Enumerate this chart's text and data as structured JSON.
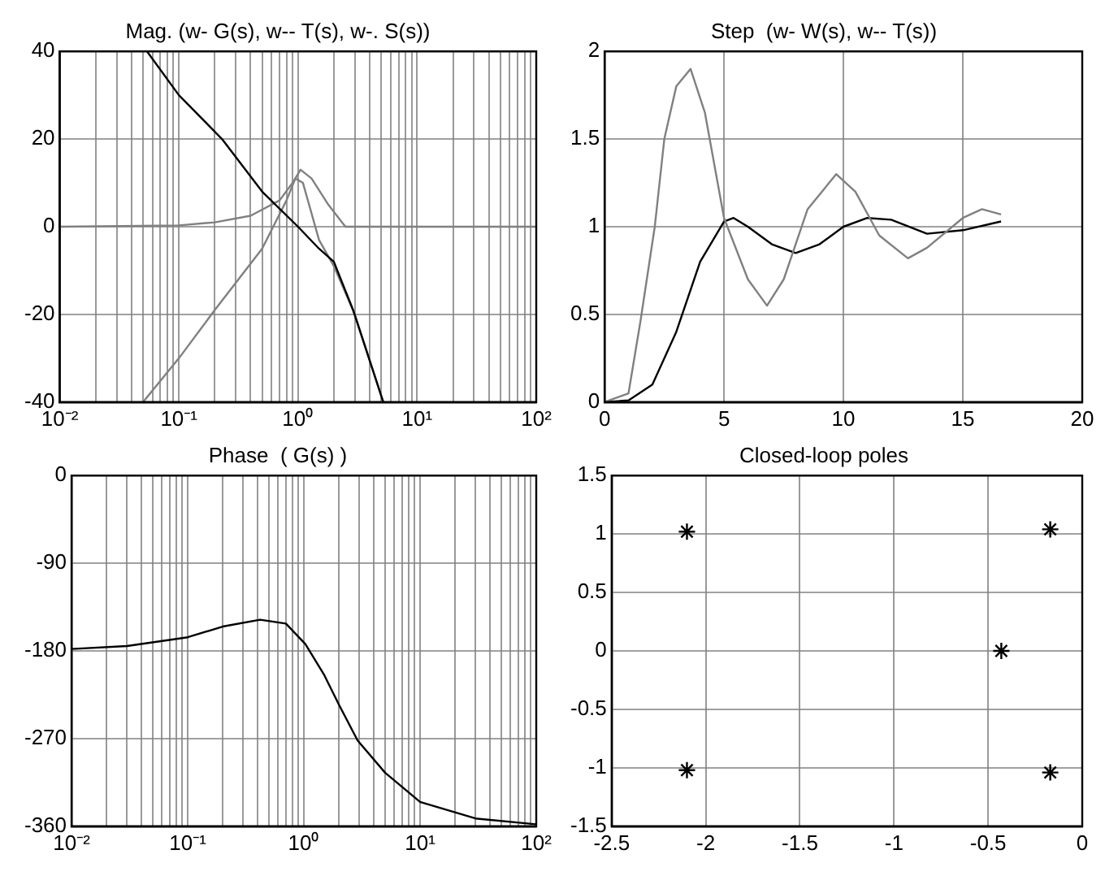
{
  "chart_data": [
    {
      "type": "line",
      "title": "Mag. (w- G(s), w-- T(s), w-. S(s))",
      "log": "x",
      "grid": true,
      "marker": "none",
      "line_style": "solid",
      "xlim": [
        0.01,
        100
      ],
      "ylim": [
        -40,
        40
      ],
      "yticks": [
        -40,
        -20,
        0,
        20,
        40
      ],
      "xticks": [
        {
          "value": 0.01,
          "label": "10⁻²"
        },
        {
          "value": 0.02,
          "label": null
        },
        {
          "value": 0.03,
          "label": null
        },
        {
          "value": 0.04,
          "label": null
        },
        {
          "value": 0.05,
          "label": null
        },
        {
          "value": 0.06,
          "label": null
        },
        {
          "value": 0.07,
          "label": null
        },
        {
          "value": 0.08,
          "label": null
        },
        {
          "value": 0.09,
          "label": null
        },
        {
          "value": 0.1,
          "label": "10⁻¹"
        },
        {
          "value": 0.2,
          "label": null
        },
        {
          "value": 0.3,
          "label": null
        },
        {
          "value": 0.4,
          "label": null
        },
        {
          "value": 0.5,
          "label": null
        },
        {
          "value": 0.6,
          "label": null
        },
        {
          "value": 0.7,
          "label": null
        },
        {
          "value": 0.8,
          "label": null
        },
        {
          "value": 0.9,
          "label": null
        },
        {
          "value": 1,
          "label": "10⁰"
        },
        {
          "value": 2,
          "label": null
        },
        {
          "value": 3,
          "label": null
        },
        {
          "value": 4,
          "label": null
        },
        {
          "value": 5,
          "label": null
        },
        {
          "value": 6,
          "label": null
        },
        {
          "value": 7,
          "label": null
        },
        {
          "value": 8,
          "label": null
        },
        {
          "value": 9,
          "label": null
        },
        {
          "value": 10,
          "label": "10¹"
        },
        {
          "value": 20,
          "label": null
        },
        {
          "value": 30,
          "label": null
        },
        {
          "value": 40,
          "label": null
        },
        {
          "value": 50,
          "label": null
        },
        {
          "value": 60,
          "label": null
        },
        {
          "value": 70,
          "label": null
        },
        {
          "value": 80,
          "label": null
        },
        {
          "value": 90,
          "label": null
        },
        {
          "value": 100,
          "label": "10²"
        }
      ],
      "series": [
        {
          "color": "#000000",
          "x": [
            0.054,
            0.1,
            0.23,
            0.5,
            1.0,
            1.5,
            2.0,
            2.9,
            5.2
          ],
          "values": [
            40,
            30,
            20,
            8,
            0,
            -5,
            -8,
            -19,
            -40
          ]
        },
        {
          "color": "#808080",
          "x": [
            0.01,
            0.1,
            0.2,
            0.4,
            0.7,
            0.9,
            1.05,
            1.3,
            1.8,
            2.5,
            10,
            100
          ],
          "values": [
            0,
            0.3,
            1,
            2.5,
            6,
            10,
            13,
            11,
            5,
            0,
            0,
            0
          ]
        },
        {
          "color": "#808080",
          "x": [
            0.05,
            0.1,
            0.2,
            0.5,
            0.8,
            0.95,
            1.1,
            1.5,
            2,
            3,
            5.2
          ],
          "values": [
            -40,
            -30,
            -19,
            -5,
            6,
            11,
            10,
            -3,
            -9,
            -20,
            -40
          ]
        }
      ]
    },
    {
      "type": "line",
      "title": "Step  (w- W(s), w-- T(s))",
      "grid": true,
      "marker": "none",
      "line_style": "solid",
      "xlim": [
        0,
        20
      ],
      "xticks": [
        0,
        5,
        10,
        15,
        20
      ],
      "ylim": [
        0,
        2
      ],
      "yticks": [
        0,
        0.5,
        1,
        1.5,
        2
      ],
      "series": [
        {
          "color": "#808080",
          "x": [
            0,
            1,
            1.5,
            2.1,
            2.5,
            3,
            3.6,
            4.2,
            5,
            6,
            6.8,
            7.5,
            8.5,
            9.7,
            10.5,
            11.5,
            12.7,
            13.5,
            15,
            15.8,
            16.6
          ],
          "values": [
            0,
            0.05,
            0.46,
            1.0,
            1.5,
            1.8,
            1.9,
            1.65,
            1.05,
            0.7,
            0.55,
            0.7,
            1.1,
            1.3,
            1.2,
            0.95,
            0.82,
            0.88,
            1.05,
            1.1,
            1.07
          ]
        },
        {
          "color": "#000000",
          "x": [
            0,
            1,
            2,
            3,
            4,
            5,
            5.4,
            6,
            7,
            8,
            9,
            10,
            11,
            12,
            13.5,
            15,
            16.6
          ],
          "values": [
            0,
            0.01,
            0.1,
            0.4,
            0.8,
            1.03,
            1.05,
            1.0,
            0.9,
            0.85,
            0.9,
            1.0,
            1.05,
            1.04,
            0.96,
            0.98,
            1.03
          ]
        }
      ]
    },
    {
      "type": "line",
      "title": "Phase  ( G(s) )",
      "log": "x",
      "grid": true,
      "marker": "none",
      "line_style": "solid",
      "xlim": [
        0.01,
        100
      ],
      "ylim": [
        -360,
        0
      ],
      "yticks": [
        -360,
        -270,
        -180,
        -90,
        0
      ],
      "xticks": [
        {
          "value": 0.01,
          "label": "10⁻²"
        },
        {
          "value": 0.02,
          "label": null
        },
        {
          "value": 0.03,
          "label": null
        },
        {
          "value": 0.04,
          "label": null
        },
        {
          "value": 0.05,
          "label": null
        },
        {
          "value": 0.06,
          "label": null
        },
        {
          "value": 0.07,
          "label": null
        },
        {
          "value": 0.08,
          "label": null
        },
        {
          "value": 0.09,
          "label": null
        },
        {
          "value": 0.1,
          "label": "10⁻¹"
        },
        {
          "value": 0.2,
          "label": null
        },
        {
          "value": 0.3,
          "label": null
        },
        {
          "value": 0.4,
          "label": null
        },
        {
          "value": 0.5,
          "label": null
        },
        {
          "value": 0.6,
          "label": null
        },
        {
          "value": 0.7,
          "label": null
        },
        {
          "value": 0.8,
          "label": null
        },
        {
          "value": 0.9,
          "label": null
        },
        {
          "value": 1,
          "label": "10⁰"
        },
        {
          "value": 2,
          "label": null
        },
        {
          "value": 3,
          "label": null
        },
        {
          "value": 4,
          "label": null
        },
        {
          "value": 5,
          "label": null
        },
        {
          "value": 6,
          "label": null
        },
        {
          "value": 7,
          "label": null
        },
        {
          "value": 8,
          "label": null
        },
        {
          "value": 9,
          "label": null
        },
        {
          "value": 10,
          "label": "10¹"
        },
        {
          "value": 20,
          "label": null
        },
        {
          "value": 30,
          "label": null
        },
        {
          "value": 40,
          "label": null
        },
        {
          "value": 50,
          "label": null
        },
        {
          "value": 60,
          "label": null
        },
        {
          "value": 70,
          "label": null
        },
        {
          "value": 80,
          "label": null
        },
        {
          "value": 90,
          "label": null
        },
        {
          "value": 100,
          "label": "10²"
        }
      ],
      "series": [
        {
          "color": "#000000",
          "x": [
            0.01,
            0.03,
            0.1,
            0.2,
            0.42,
            0.7,
            1.03,
            1.5,
            2,
            2.9,
            5,
            10,
            30,
            100
          ],
          "values": [
            -178,
            -175,
            -166,
            -155,
            -148,
            -152,
            -173,
            -205,
            -235,
            -272,
            -305,
            -335,
            -352,
            -358
          ]
        }
      ]
    },
    {
      "type": "scatter",
      "title": "Closed-loop poles",
      "grid": true,
      "marker": "cross",
      "xlim": [
        -2.5,
        0
      ],
      "xticks": [
        -2.5,
        -2,
        -1.5,
        -1,
        -0.5,
        0
      ],
      "ylim": [
        -1.5,
        1.5
      ],
      "yticks": [
        -1.5,
        -1,
        -0.5,
        0,
        0.5,
        1,
        1.5
      ],
      "series": [
        {
          "color": "#000000",
          "x": [
            -2.1,
            -2.1,
            -0.43,
            -0.17,
            -0.17
          ],
          "values": [
            1.02,
            -1.02,
            0,
            1.04,
            -1.04
          ]
        }
      ]
    }
  ]
}
